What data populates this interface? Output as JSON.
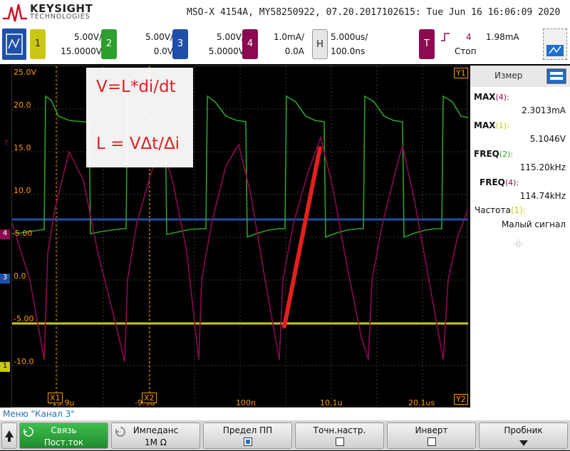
{
  "header": {
    "brand": "KEYSIGHT",
    "brand_sub": "TECHNOLOGIES",
    "title": "MSO-X 4154A, MY58250922, 07.20.2017102615: Tue Jun 16 16:06:09 2020"
  },
  "channels": [
    {
      "num": "1",
      "scale": "5.00V/",
      "offset": "15.0000V",
      "color": "#c8c814"
    },
    {
      "num": "2",
      "scale": "5.00V/",
      "offset": "0.0V",
      "color": "#2ca02c"
    },
    {
      "num": "3",
      "scale": "5.00V/",
      "offset": "5.0000V",
      "color": "#1f4fa8"
    },
    {
      "num": "4",
      "scale": "1.0mA/",
      "offset": "0.0A",
      "color": "#8b0a50"
    }
  ],
  "horizontal": {
    "key": "H",
    "scale": "5.000us/",
    "position": "100.0ns"
  },
  "trigger": {
    "key": "T",
    "source": "4",
    "level": "1.98mA",
    "state": "Стоп"
  },
  "grid": {
    "y_labels": [
      "25.0V",
      "20.0",
      "15.0",
      "10.0",
      "5.00",
      "0.0",
      "-5.00",
      "-10.0"
    ],
    "x_labels": [
      "-19.9u",
      "-9.9u",
      "100n",
      "10.1u",
      "20.1us"
    ],
    "markers": {
      "x1": "X1",
      "x2": "X2",
      "y1": "Y1",
      "y2": "Y2",
      "ch2": "2",
      "ch3": "3",
      "ch4": "4",
      "ch1": "1",
      "trig": "T"
    },
    "annotation_1": "V=L*di/dt",
    "annotation_2": "L = VΔt/Δi"
  },
  "measure": {
    "tab": "Измер",
    "items": [
      {
        "label": "MAX",
        "src": "(4):",
        "value": "2.3013mA"
      },
      {
        "label": "MAX",
        "src": "(1):",
        "value": "5.1046V"
      },
      {
        "label": "FREQ",
        "src": "(2):",
        "value": "115.20kHz"
      },
      {
        "label": "FREQ",
        "src": "(4):",
        "value": "114.74kHz"
      },
      {
        "label": "Частота",
        "src": "(1):",
        "value": "Малый сигнал"
      }
    ],
    "plus": "+"
  },
  "menu": {
    "title": "Меню \"Канал 3\""
  },
  "softkeys": [
    {
      "l1": "Связь",
      "l2": "Пост.ток"
    },
    {
      "l1": "Импеданс",
      "l2": "1M Ω"
    },
    {
      "l1": "Предел ПП",
      "l2": ""
    },
    {
      "l1": "Точн.настр.",
      "l2": ""
    },
    {
      "l1": "Инверт",
      "l2": ""
    },
    {
      "l1": "Пробник",
      "l2": ""
    }
  ],
  "colors": {
    "ch1": "#c8c814",
    "ch2": "#2ca02c",
    "ch3": "#1f4fa8",
    "ch4": "#8b0a50",
    "annot": "#e02020",
    "grid_label": "#ff9900"
  }
}
